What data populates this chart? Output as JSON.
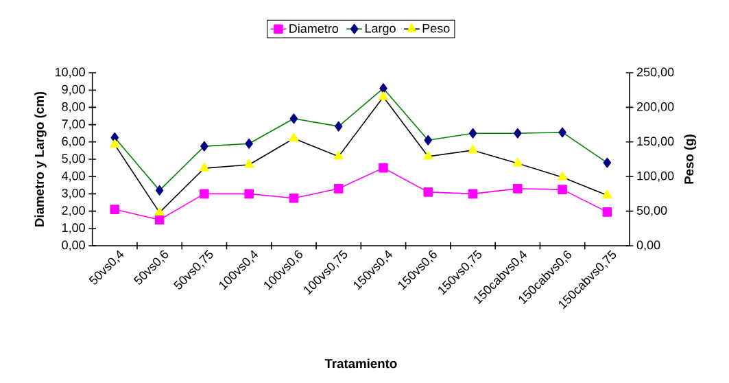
{
  "chart_data": {
    "type": "line",
    "xlabel": "Tratamiento",
    "ylabel": "Diametro y Largo (cm)",
    "y2label": "Peso (g)",
    "categories": [
      "50vs0,4",
      "50vs0,6",
      "50vs0,75",
      "100vs0,4",
      "100vs0,6",
      "100vs0,75",
      "150vs0,4",
      "150vs0,6",
      "150vs0,75",
      "150cabvs0,4",
      "150cabvs0,6",
      "150cabvs0,75"
    ],
    "series": [
      {
        "name": "Diametro",
        "color": "#ff00ff",
        "marker": "square",
        "values": [
          2.1,
          1.5,
          3.0,
          3.0,
          2.75,
          3.3,
          4.5,
          3.1,
          3.0,
          3.3,
          3.25,
          1.95
        ]
      },
      {
        "name": "Largo",
        "color": "#008000",
        "marker": "diamond",
        "values": [
          6.25,
          3.2,
          5.75,
          5.9,
          7.35,
          6.9,
          9.1,
          6.1,
          6.5,
          6.5,
          6.55,
          4.8
        ]
      },
      {
        "name": "Peso",
        "color": "#000000",
        "marker": "triangle",
        "axis": "y2",
        "values": [
          146,
          48,
          112,
          117,
          155,
          129,
          215,
          129,
          138,
          119,
          99,
          73
        ]
      }
    ],
    "ylim": [
      0,
      10
    ],
    "yticks": [
      {
        "value": 0,
        "label": "0,00"
      },
      {
        "value": 1,
        "label": "1,00"
      },
      {
        "value": 2,
        "label": "2,00"
      },
      {
        "value": 3,
        "label": "3,00"
      },
      {
        "value": 4,
        "label": "4,00"
      },
      {
        "value": 5,
        "label": "5,00"
      },
      {
        "value": 6,
        "label": "6,00"
      },
      {
        "value": 7,
        "label": "7,00"
      },
      {
        "value": 8,
        "label": "8,00"
      },
      {
        "value": 9,
        "label": "9,00"
      },
      {
        "value": 10,
        "label": "10,00"
      }
    ],
    "y2lim": [
      0,
      250
    ],
    "y2ticks": [
      {
        "value": 0,
        "label": "0,00"
      },
      {
        "value": 50,
        "label": "50,00"
      },
      {
        "value": 100,
        "label": "100,00"
      },
      {
        "value": 150,
        "label": "150,00"
      },
      {
        "value": 200,
        "label": "200,00"
      },
      {
        "value": 250,
        "label": "250,00"
      }
    ],
    "grid": false,
    "legend": "top"
  }
}
